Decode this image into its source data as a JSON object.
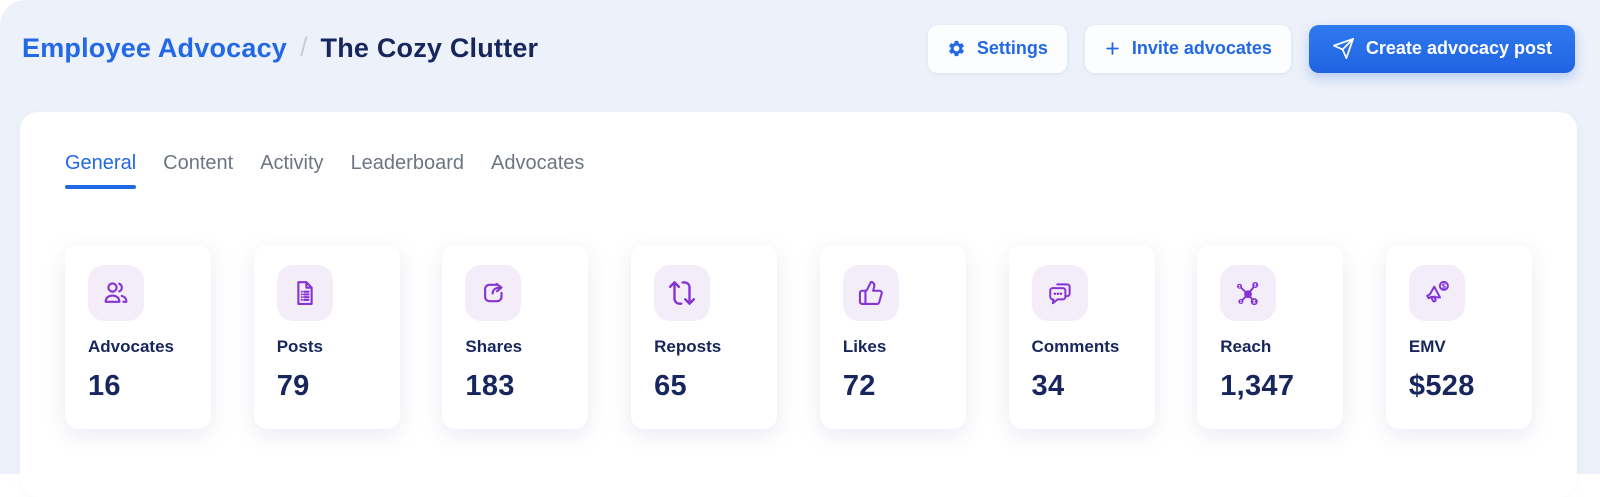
{
  "colors": {
    "accent_blue": "#2368e6",
    "navy": "#17265c",
    "purple": "#8633d6",
    "icon_bg": "#f3edfa",
    "background": "#edf1f9",
    "panel": "#ffffff",
    "tab_inactive": "#6e7582",
    "separator": "#c7cdda"
  },
  "header": {
    "breadcrumb": {
      "parent": "Employee Advocacy",
      "separator": "/",
      "current": "The Cozy Clutter"
    },
    "actions": {
      "settings": {
        "label": "Settings",
        "icon": "gear-icon"
      },
      "invite": {
        "label": "Invite advocates",
        "icon": "plus-icon"
      },
      "create": {
        "label": "Create advocacy post",
        "icon": "send-icon"
      }
    }
  },
  "tabs": [
    {
      "label": "General",
      "active": true
    },
    {
      "label": "Content",
      "active": false
    },
    {
      "label": "Activity",
      "active": false
    },
    {
      "label": "Leaderboard",
      "active": false
    },
    {
      "label": "Advocates",
      "active": false
    }
  ],
  "stats": [
    {
      "label": "Advocates",
      "value": "16",
      "icon": "users-icon"
    },
    {
      "label": "Posts",
      "value": "79",
      "icon": "document-icon"
    },
    {
      "label": "Shares",
      "value": "183",
      "icon": "share-icon"
    },
    {
      "label": "Reposts",
      "value": "65",
      "icon": "repost-icon"
    },
    {
      "label": "Likes",
      "value": "72",
      "icon": "thumbs-up-icon"
    },
    {
      "label": "Comments",
      "value": "34",
      "icon": "comments-icon"
    },
    {
      "label": "Reach",
      "value": "1,347",
      "icon": "network-icon"
    },
    {
      "label": "EMV",
      "value": "$528",
      "icon": "megaphone-icon"
    }
  ]
}
